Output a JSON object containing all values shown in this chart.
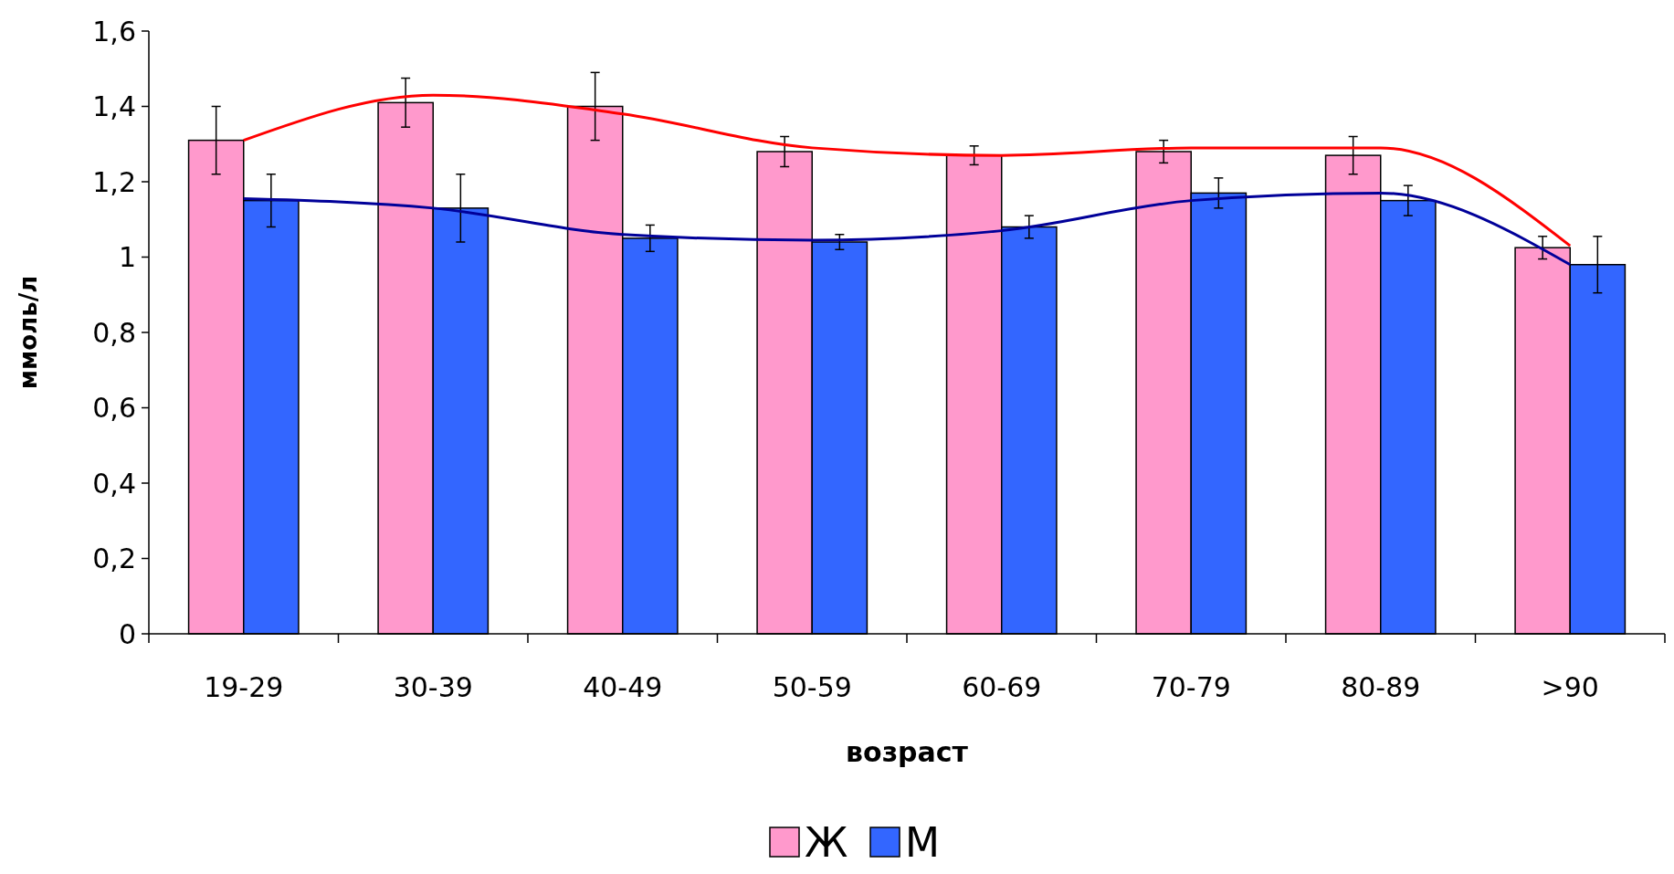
{
  "chart_data": {
    "type": "bar",
    "xlabel": "возраст",
    "ylabel": "ммоль/л",
    "categories": [
      "19-29",
      "30-39",
      "40-49",
      "50-59",
      "60-69",
      "70-79",
      "80-89",
      ">90"
    ],
    "ylim": [
      0,
      1.6
    ],
    "yticks": [
      {
        "value": 0,
        "label": "0"
      },
      {
        "value": 0.2,
        "label": "0,2"
      },
      {
        "value": 0.4,
        "label": "0,4"
      },
      {
        "value": 0.6,
        "label": "0,6"
      },
      {
        "value": 0.8,
        "label": "0,8"
      },
      {
        "value": 1,
        "label": "1"
      },
      {
        "value": 1.2,
        "label": "1,2"
      },
      {
        "value": 1.4,
        "label": "1,4"
      },
      {
        "value": 1.6,
        "label": "1,6"
      }
    ],
    "grid": false,
    "legend": "bottom",
    "series": [
      {
        "name": "Ж",
        "color": "#ff99cc",
        "values": [
          1.31,
          1.41,
          1.4,
          1.28,
          1.27,
          1.28,
          1.27,
          1.025
        ],
        "errors": [
          0.09,
          0.065,
          0.09,
          0.04,
          0.025,
          0.03,
          0.05,
          0.03
        ]
      },
      {
        "name": "М",
        "color": "#3366ff",
        "values": [
          1.15,
          1.13,
          1.05,
          1.04,
          1.08,
          1.17,
          1.15,
          0.98
        ],
        "errors": [
          0.07,
          0.09,
          0.035,
          0.02,
          0.03,
          0.04,
          0.04,
          0.075
        ]
      },
      {
        "type": "line",
        "color": "#ff0000",
        "values": [
          1.31,
          1.43,
          1.38,
          1.29,
          1.27,
          1.29,
          1.29,
          1.03
        ]
      },
      {
        "type": "line",
        "color": "#000099",
        "values": [
          1.155,
          1.13,
          1.06,
          1.045,
          1.07,
          1.15,
          1.17,
          0.98
        ]
      }
    ]
  }
}
